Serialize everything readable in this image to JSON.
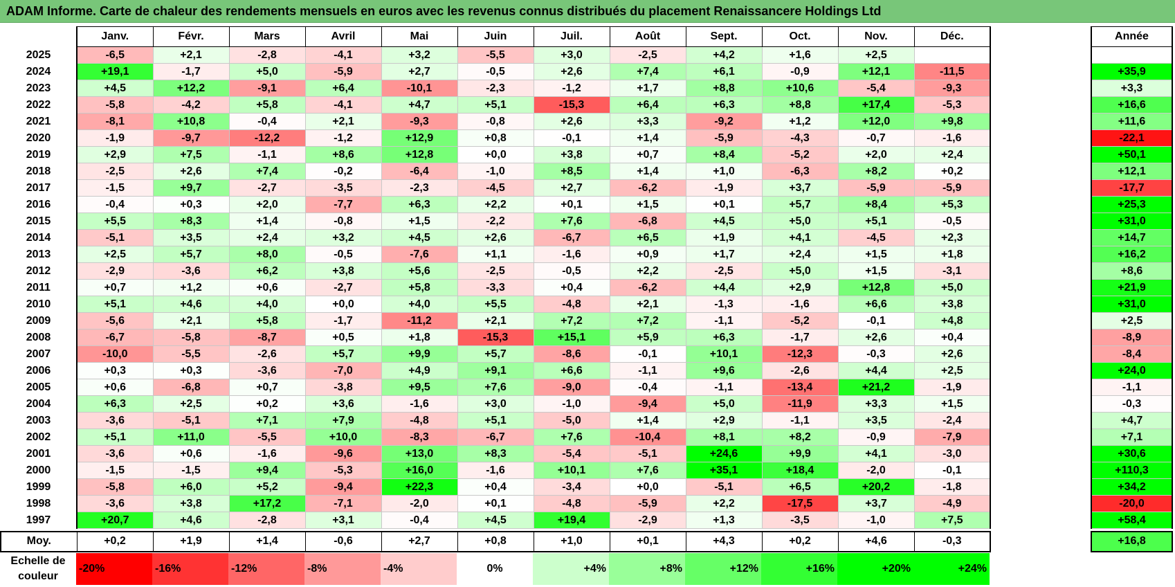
{
  "title": "ADAM Informe. Carte de chaleur des rendements mensuels en euros avec les revenus connus distribués du placement Renaissancere Holdings Ltd",
  "months": [
    "Janv.",
    "Févr.",
    "Mars",
    "Avril",
    "Mai",
    "Juin",
    "Juil.",
    "Août",
    "Sept.",
    "Oct.",
    "Nov.",
    "Déc."
  ],
  "year_header": "Année",
  "avg_label": "Moy.",
  "scale_label": "Echelle de couleur",
  "chart_data": {
    "type": "heatmap",
    "title": "ADAM Informe. Carte de chaleur des rendements mensuels en euros avec les revenus connus distribués du placement Renaissancere Holdings Ltd",
    "unit": "%",
    "x_categories": [
      "Janv.",
      "Févr.",
      "Mars",
      "Avril",
      "Mai",
      "Juin",
      "Juil.",
      "Août",
      "Sept.",
      "Oct.",
      "Nov.",
      "Déc."
    ],
    "rows": [
      {
        "year": "2025",
        "values": [
          -6.5,
          2.1,
          -2.8,
          -4.1,
          3.2,
          -5.5,
          3.0,
          -2.5,
          4.2,
          1.6,
          2.5,
          null
        ],
        "annual": null
      },
      {
        "year": "2024",
        "values": [
          19.1,
          -1.7,
          5.0,
          -5.9,
          2.7,
          -0.5,
          2.6,
          7.4,
          6.1,
          -0.9,
          12.1,
          -11.5
        ],
        "annual": 35.9
      },
      {
        "year": "2023",
        "values": [
          4.5,
          12.2,
          -9.1,
          6.4,
          -10.1,
          -2.3,
          -1.2,
          1.7,
          8.8,
          10.6,
          -5.4,
          -9.3
        ],
        "annual": 3.3
      },
      {
        "year": "2022",
        "values": [
          -5.8,
          -4.2,
          5.8,
          -4.1,
          4.7,
          5.1,
          -15.3,
          6.4,
          6.3,
          8.8,
          17.4,
          -5.3
        ],
        "annual": 16.6
      },
      {
        "year": "2021",
        "values": [
          -8.1,
          10.8,
          -0.4,
          2.1,
          -9.3,
          -0.8,
          2.6,
          3.3,
          -9.2,
          1.2,
          12.0,
          9.8
        ],
        "annual": 11.6
      },
      {
        "year": "2020",
        "values": [
          -1.9,
          -9.7,
          -12.2,
          -1.2,
          12.9,
          0.8,
          -0.1,
          1.4,
          -5.9,
          -4.3,
          -0.7,
          -1.6
        ],
        "annual": -22.1
      },
      {
        "year": "2019",
        "values": [
          2.9,
          7.5,
          -1.1,
          8.6,
          12.8,
          -0.0,
          3.8,
          0.7,
          8.4,
          -5.2,
          2.0,
          2.4
        ],
        "annual": 50.1
      },
      {
        "year": "2018",
        "values": [
          -2.5,
          2.6,
          7.4,
          -0.2,
          -6.4,
          -1.0,
          8.5,
          1.4,
          1.0,
          -6.3,
          8.2,
          0.2
        ],
        "annual": 12.1
      },
      {
        "year": "2017",
        "values": [
          -1.5,
          9.7,
          -2.7,
          -3.5,
          -2.3,
          -4.5,
          2.7,
          -6.2,
          -1.9,
          3.7,
          -5.9,
          -5.9
        ],
        "annual": -17.7
      },
      {
        "year": "2016",
        "values": [
          -0.4,
          0.3,
          2.0,
          -7.7,
          6.3,
          2.2,
          0.1,
          1.5,
          0.1,
          5.7,
          8.4,
          5.3
        ],
        "annual": 25.3
      },
      {
        "year": "2015",
        "values": [
          5.5,
          8.3,
          1.4,
          -0.8,
          1.5,
          -2.2,
          7.6,
          -6.8,
          4.5,
          5.0,
          5.1,
          -0.5
        ],
        "annual": 31.0
      },
      {
        "year": "2014",
        "values": [
          -5.1,
          3.5,
          2.4,
          3.2,
          4.5,
          2.6,
          -6.7,
          6.5,
          1.9,
          4.1,
          -4.5,
          2.3
        ],
        "annual": 14.7
      },
      {
        "year": "2013",
        "values": [
          2.5,
          5.7,
          8.0,
          -0.5,
          -7.6,
          1.1,
          -1.6,
          0.9,
          1.7,
          2.4,
          1.5,
          1.8
        ],
        "annual": 16.2
      },
      {
        "year": "2012",
        "values": [
          -2.9,
          -3.6,
          6.2,
          3.8,
          5.6,
          -2.5,
          -0.5,
          2.2,
          -2.5,
          5.0,
          1.5,
          -3.1
        ],
        "annual": 8.6
      },
      {
        "year": "2011",
        "values": [
          0.7,
          1.2,
          0.6,
          -2.7,
          5.8,
          -3.3,
          0.4,
          -6.2,
          4.4,
          2.9,
          12.8,
          5.0
        ],
        "annual": 21.9
      },
      {
        "year": "2010",
        "values": [
          5.1,
          4.6,
          4.0,
          -0.0,
          4.0,
          5.5,
          -4.8,
          2.1,
          -1.3,
          -1.6,
          6.6,
          3.8
        ],
        "annual": 31.0
      },
      {
        "year": "2009",
        "values": [
          -5.6,
          2.1,
          5.8,
          -1.7,
          -11.2,
          2.1,
          7.2,
          7.2,
          -1.1,
          -5.2,
          -0.1,
          4.8
        ],
        "annual": 2.5
      },
      {
        "year": "2008",
        "values": [
          -6.7,
          -5.8,
          -8.7,
          0.5,
          1.8,
          -15.3,
          15.1,
          5.9,
          6.3,
          -1.7,
          2.6,
          0.4
        ],
        "annual": -8.9
      },
      {
        "year": "2007",
        "values": [
          -10.0,
          -5.5,
          -2.6,
          5.7,
          9.9,
          5.7,
          -8.6,
          -0.1,
          10.1,
          -12.3,
          -0.3,
          2.6
        ],
        "annual": -8.4
      },
      {
        "year": "2006",
        "values": [
          0.3,
          0.3,
          -3.6,
          -7.0,
          4.9,
          9.1,
          6.6,
          -1.1,
          9.6,
          -2.6,
          4.4,
          2.5
        ],
        "annual": 24.0
      },
      {
        "year": "2005",
        "values": [
          0.6,
          -6.8,
          0.7,
          -3.8,
          9.5,
          7.6,
          -9.0,
          -0.4,
          -1.1,
          -13.4,
          21.2,
          -1.9
        ],
        "annual": -1.1
      },
      {
        "year": "2004",
        "values": [
          6.3,
          2.5,
          0.2,
          3.6,
          -1.6,
          3.0,
          -1.0,
          -9.4,
          5.0,
          -11.9,
          3.3,
          1.5
        ],
        "annual": -0.3
      },
      {
        "year": "2003",
        "values": [
          -3.6,
          -5.1,
          7.1,
          7.9,
          -4.8,
          5.1,
          -5.0,
          1.4,
          2.9,
          -1.1,
          3.5,
          -2.4
        ],
        "annual": 4.7
      },
      {
        "year": "2002",
        "values": [
          5.1,
          11.0,
          -5.5,
          10.0,
          -8.3,
          -6.7,
          7.6,
          -10.4,
          8.1,
          8.2,
          -0.9,
          -7.9
        ],
        "annual": 7.1
      },
      {
        "year": "2001",
        "values": [
          -3.6,
          0.6,
          -1.6,
          -9.6,
          13.0,
          8.3,
          -5.4,
          -5.1,
          24.6,
          9.9,
          4.1,
          -3.0
        ],
        "annual": 30.6
      },
      {
        "year": "2000",
        "values": [
          -1.5,
          -1.5,
          9.4,
          -5.3,
          16.0,
          -1.6,
          10.1,
          7.6,
          35.1,
          18.4,
          -2.0,
          -0.1
        ],
        "annual": 110.3
      },
      {
        "year": "1999",
        "values": [
          -5.8,
          6.0,
          5.2,
          -9.4,
          22.3,
          0.4,
          -3.4,
          0.0,
          -5.1,
          6.5,
          20.2,
          -1.8
        ],
        "annual": 34.2
      },
      {
        "year": "1998",
        "values": [
          -3.6,
          3.8,
          17.2,
          -7.1,
          -2.0,
          0.1,
          -4.8,
          -5.9,
          2.2,
          -17.5,
          3.7,
          -4.9
        ],
        "annual": -20.0
      },
      {
        "year": "1997",
        "values": [
          20.7,
          4.6,
          -2.8,
          3.1,
          -0.4,
          4.5,
          19.4,
          -2.9,
          1.3,
          -3.5,
          -1.0,
          7.5
        ],
        "annual": 58.4
      }
    ],
    "average": {
      "values": [
        0.2,
        1.9,
        1.4,
        -0.6,
        2.7,
        0.8,
        1.0,
        0.1,
        4.3,
        0.2,
        4.6,
        -0.3
      ],
      "annual": 16.8
    },
    "color_scale": [
      {
        "label": "-20%",
        "value": -20
      },
      {
        "label": "-16%",
        "value": -16
      },
      {
        "label": "-12%",
        "value": -12
      },
      {
        "label": "-8%",
        "value": -8
      },
      {
        "label": "-4%",
        "value": -4
      },
      {
        "label": "0%",
        "value": 0
      },
      {
        "label": "+4%",
        "value": 4
      },
      {
        "label": "+8%",
        "value": 8
      },
      {
        "label": "+12%",
        "value": 12
      },
      {
        "label": "+16%",
        "value": 16
      },
      {
        "label": "+20%",
        "value": 20
      },
      {
        "label": "+24%",
        "value": 24
      }
    ],
    "colors": {
      "negative_max": "#ff0000",
      "neutral": "#ffffff",
      "positive_max": "#00ff00"
    }
  }
}
